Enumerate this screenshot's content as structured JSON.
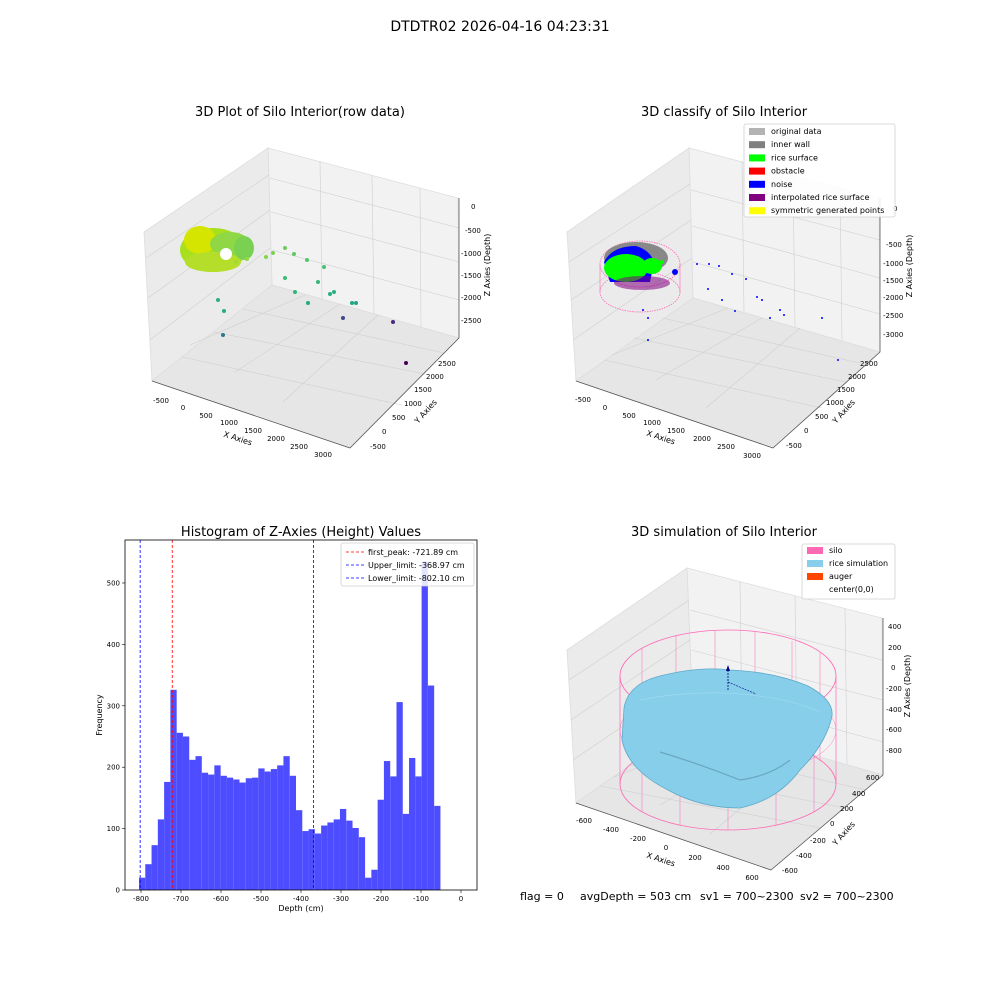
{
  "page": {
    "title": "DTDTR02 2026-04-16 04:23:31"
  },
  "footer": {
    "flag": "flag = 0",
    "avg_depth": "avgDepth = 503 cm",
    "sv1": "sv1 = 700~2300",
    "sv2": "sv2 = 700~2300"
  },
  "colors": {
    "original": "#b3b3b3",
    "inner_wall": "#808080",
    "rice_surface": "#00ff00",
    "obstacle": "#ff0000",
    "noise": "#0000ff",
    "interpolated": "#800080",
    "symmetric": "#ffff00",
    "silo": "#ff69b4",
    "rice_sim": "#87ceeb",
    "auger": "#ff4500",
    "hist_bar": "#4d4dff"
  },
  "plots": {
    "raw": {
      "title": "3D Plot of Silo Interior(row data)",
      "xlabel": "X Axies",
      "ylabel": "Y Axies",
      "zlabel": "Z Axies (Depth)",
      "x_ticks": [
        "-500",
        "0",
        "500",
        "1000",
        "1500",
        "2000",
        "2500",
        "3000"
      ],
      "y_ticks": [
        "-500",
        "0",
        "500",
        "1000",
        "1500",
        "2000",
        "2500"
      ],
      "z_ticks": [
        "0",
        "-500",
        "-1000",
        "-1500",
        "-2000",
        "-2500"
      ]
    },
    "classify": {
      "title": "3D classify of Silo Interior",
      "xlabel": "X Axies",
      "ylabel": "Y Axies",
      "zlabel": "Z Axies (Depth)",
      "x_ticks": [
        "-500",
        "0",
        "500",
        "1000",
        "1500",
        "2000",
        "2500",
        "3000"
      ],
      "y_ticks": [
        "-500",
        "0",
        "500",
        "1000",
        "1500",
        "2000",
        "2500"
      ],
      "z_ticks": [
        "0",
        "-500",
        "-1000",
        "-1500",
        "-2000",
        "-2500",
        "-3000"
      ],
      "legend": [
        {
          "label": "original data",
          "color": "#b3b3b3"
        },
        {
          "label": "inner wall",
          "color": "#808080"
        },
        {
          "label": "rice surface",
          "color": "#00ff00"
        },
        {
          "label": "obstacle",
          "color": "#ff0000"
        },
        {
          "label": "noise",
          "color": "#0000ff"
        },
        {
          "label": "interpolated rice surface",
          "color": "#800080"
        },
        {
          "label": "symmetric generated points",
          "color": "#ffff00"
        }
      ]
    },
    "simulation": {
      "title": "3D simulation of Silo Interior",
      "xlabel": "X Axies",
      "ylabel": "Y Axies",
      "zlabel": "Z Axies (Depth)",
      "x_ticks": [
        "-600",
        "-400",
        "-200",
        "0",
        "200",
        "400",
        "600"
      ],
      "y_ticks": [
        "-600",
        "-400",
        "-200",
        "0",
        "200",
        "400",
        "600"
      ],
      "z_ticks": [
        "400",
        "200",
        "0",
        "-200",
        "-400",
        "-600",
        "-800"
      ],
      "legend": [
        {
          "label": "silo",
          "color": "#ff69b4"
        },
        {
          "label": "rice simulation",
          "color": "#87ceeb"
        },
        {
          "label": "auger",
          "color": "#ff4500"
        },
        {
          "label": "center(0,0)",
          "color": "#ffffff"
        }
      ]
    }
  },
  "chart_data": {
    "type": "bar",
    "title": "Histogram of Z-Axies (Height) Values",
    "xlabel": "Depth (cm)",
    "ylabel": "Frequency",
    "xlim": [
      -840,
      40
    ],
    "ylim": [
      0,
      570
    ],
    "x_ticks": [
      -800,
      -700,
      -600,
      -500,
      -400,
      -300,
      -200,
      -100,
      0
    ],
    "y_ticks": [
      0,
      100,
      200,
      300,
      400,
      500
    ],
    "bin_start": -805,
    "bin_width": 15.7,
    "values": [
      20,
      42,
      73,
      115,
      176,
      326,
      256,
      250,
      212,
      218,
      191,
      188,
      203,
      186,
      183,
      180,
      175,
      182,
      183,
      198,
      193,
      197,
      203,
      218,
      186,
      130,
      96,
      99,
      92,
      105,
      110,
      115,
      132,
      113,
      101,
      86,
      20,
      33,
      147,
      210,
      185,
      306,
      124,
      215,
      185,
      535,
      333,
      137
    ],
    "vlines": [
      {
        "label": "first_peak: -721.89 cm",
        "x": -721.89,
        "color": "#ff0000"
      },
      {
        "label": "Upper_limit: -368.97 cm",
        "x": -368.97,
        "color": "#0000ff"
      },
      {
        "label": "Lower_limit: -802.10 cm",
        "x": -802.1,
        "color": "#0000ff"
      }
    ]
  }
}
